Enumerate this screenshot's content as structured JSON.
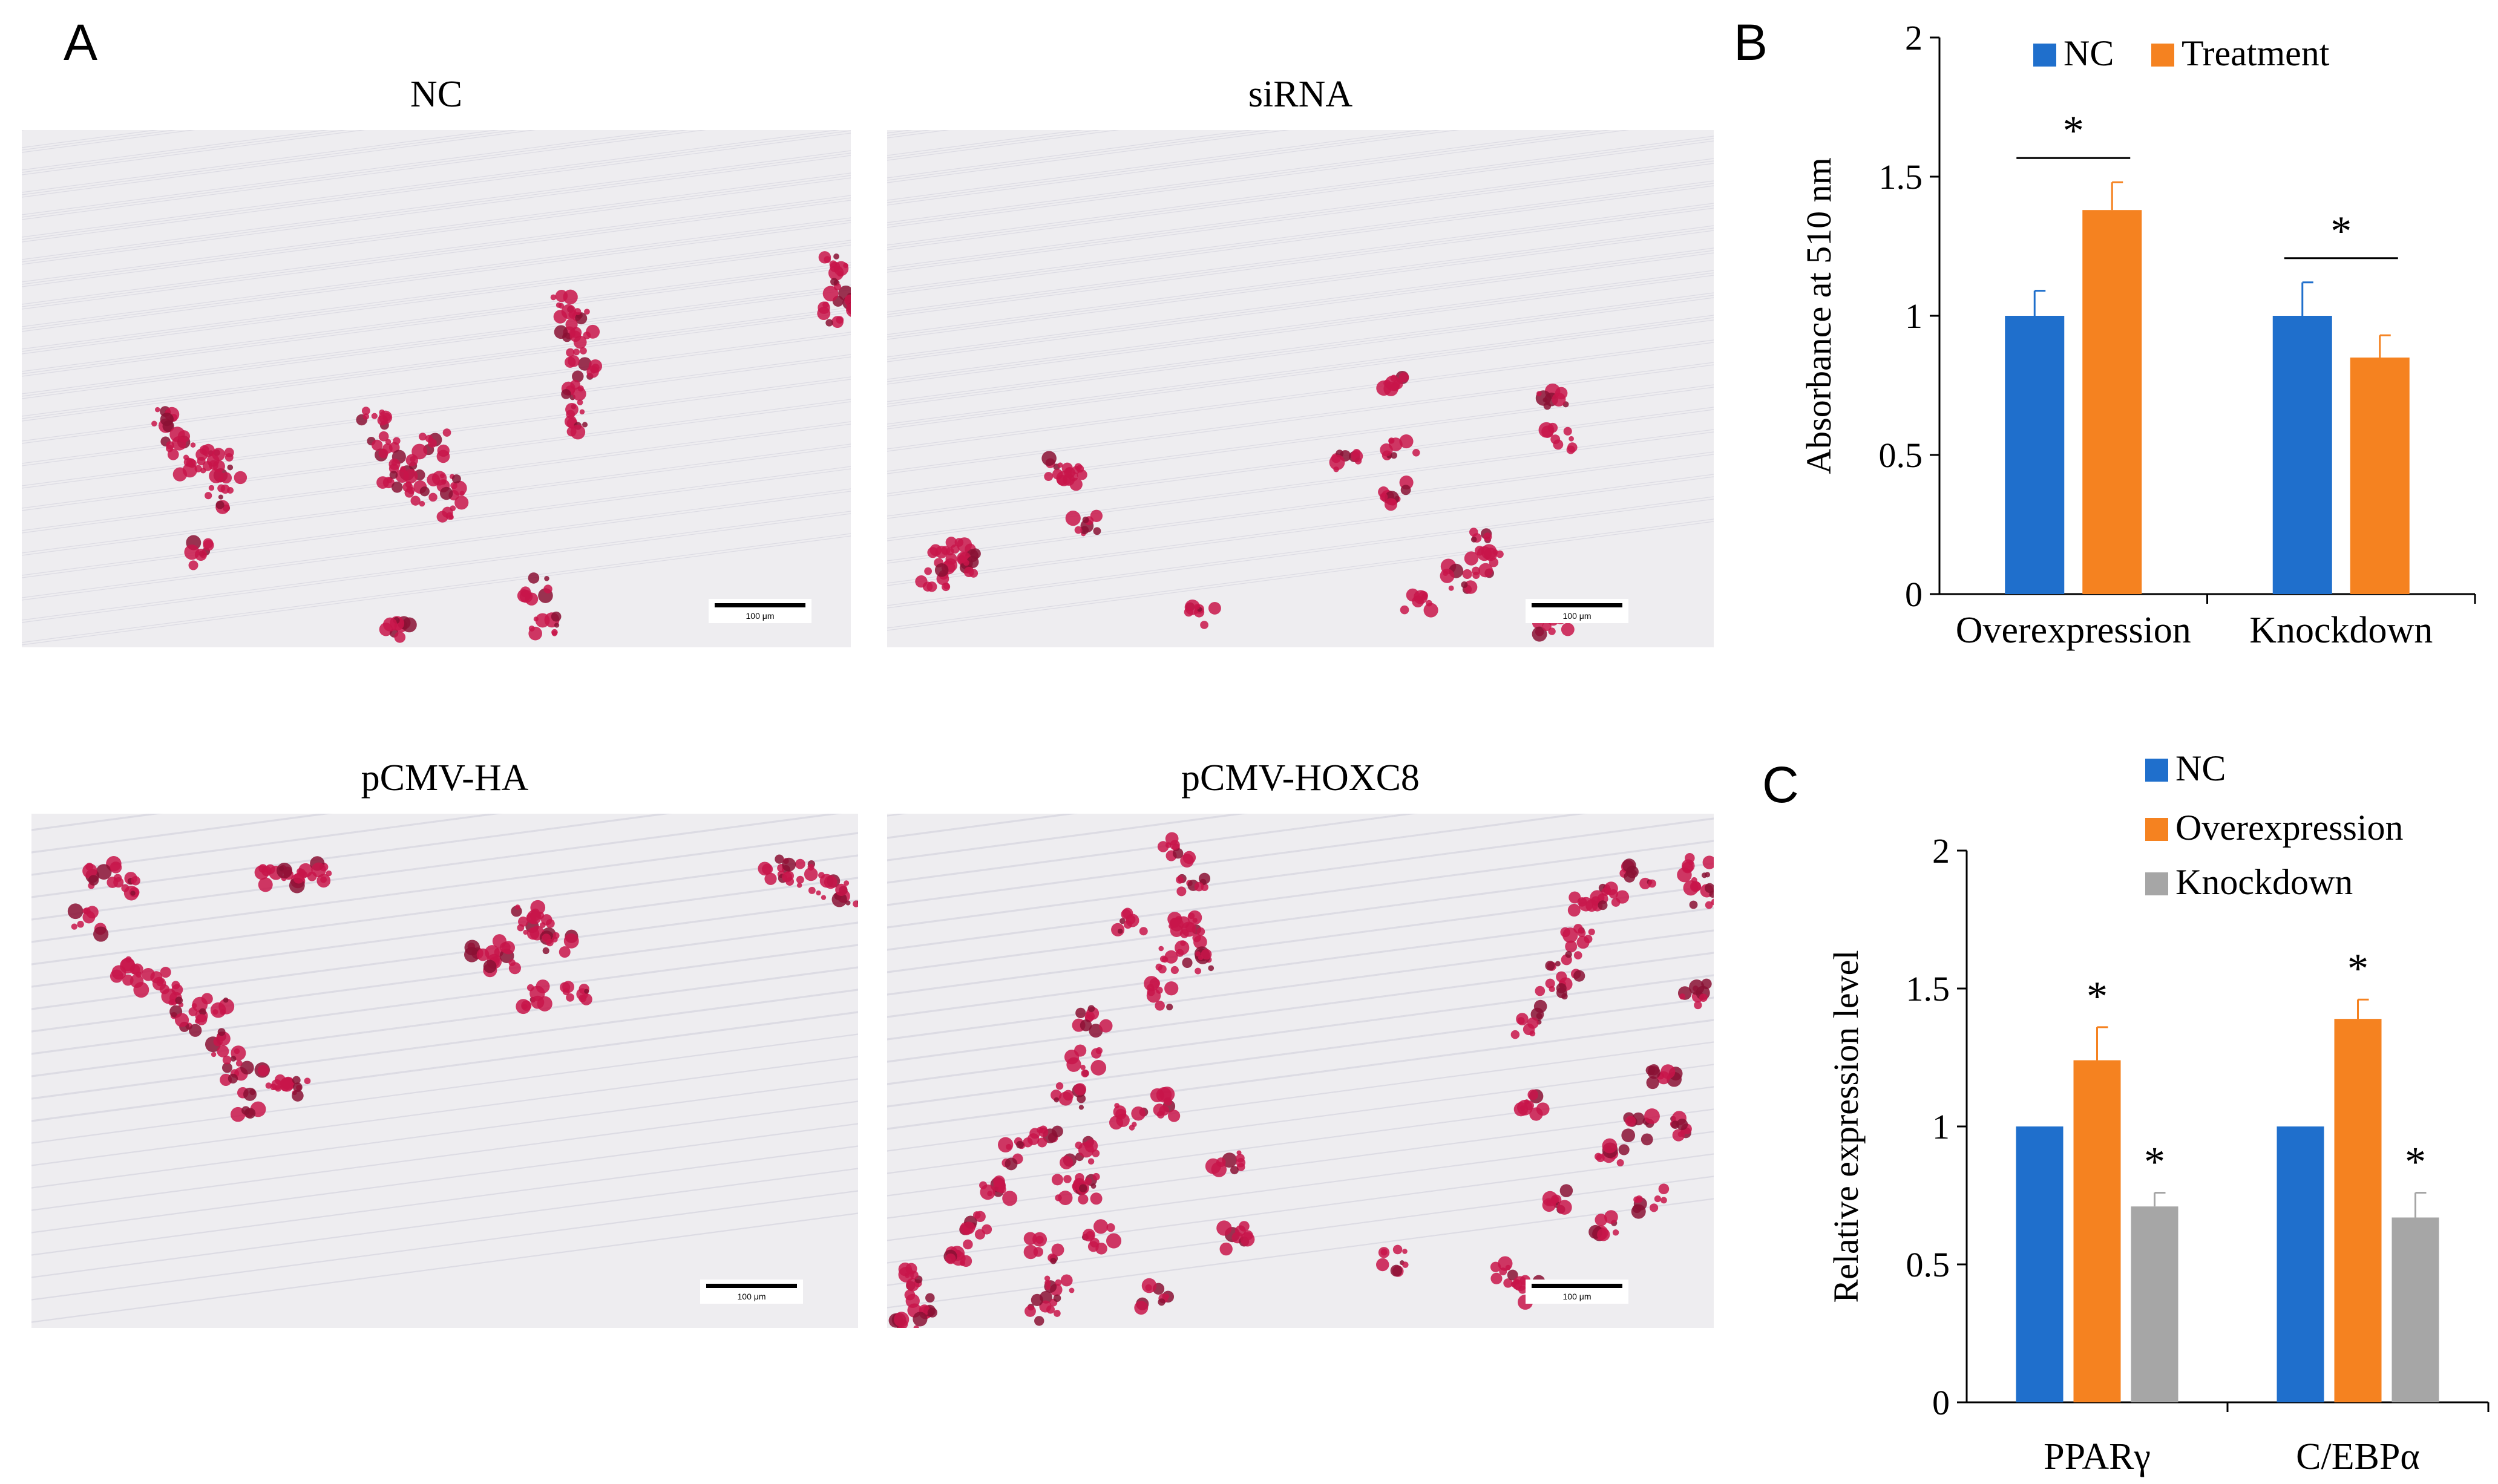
{
  "panel_a": {
    "letter": "A",
    "images": [
      {
        "title": "NC",
        "scale_label": "100 μm"
      },
      {
        "title": "siRNA",
        "scale_label": "100 μm"
      },
      {
        "title": "pCMV-HA",
        "scale_label": "100 μm"
      },
      {
        "title": "pCMV-HOXC8",
        "scale_label": "100 μm"
      }
    ]
  },
  "colors": {
    "nc": "#1f6fcc",
    "treatment": "#f58220",
    "knockdown": "#a6a6a6",
    "stain": "#c8154a"
  },
  "chart_data": [
    {
      "panel": "B",
      "type": "bar",
      "categories": [
        "Overexpression",
        "Knockdown"
      ],
      "series": [
        {
          "name": "NC",
          "values": [
            1.0,
            1.0
          ],
          "errors": [
            0.09,
            0.12
          ],
          "color": "#1f6fcc"
        },
        {
          "name": "Treatment",
          "values": [
            1.38,
            0.85
          ],
          "errors": [
            0.1,
            0.08
          ],
          "color": "#f58220"
        }
      ],
      "ylabel": "Absorbance at 510 nm",
      "ylim": [
        0,
        2
      ],
      "yticks": [
        "0",
        "0.5",
        "1",
        "1.5",
        "2"
      ],
      "yticks_values": [
        0,
        0.5,
        1,
        1.5,
        2
      ],
      "legend_placement": "top",
      "significance": [
        {
          "category": "Overexpression",
          "label": "*"
        },
        {
          "category": "Knockdown",
          "label": "*"
        }
      ],
      "grid": false
    },
    {
      "panel": "C",
      "type": "bar",
      "categories": [
        "PPARγ",
        "C/EBPα"
      ],
      "series": [
        {
          "name": "NC",
          "values": [
            1.0,
            1.0
          ],
          "errors": [
            0,
            0
          ],
          "color": "#1f6fcc"
        },
        {
          "name": "Overexpression",
          "values": [
            1.24,
            1.39
          ],
          "errors": [
            0.12,
            0.07
          ],
          "color": "#f58220"
        },
        {
          "name": "Knockdown",
          "values": [
            0.71,
            0.67
          ],
          "errors": [
            0.05,
            0.09
          ],
          "color": "#a6a6a6"
        }
      ],
      "ylabel": "Relative expression level",
      "ylim": [
        0,
        2
      ],
      "yticks": [
        "0",
        "0.5",
        "1",
        "1.5",
        "2"
      ],
      "yticks_values": [
        0,
        0.5,
        1,
        1.5,
        2
      ],
      "legend_placement": "top",
      "significance_label": "*",
      "grid": false
    }
  ]
}
